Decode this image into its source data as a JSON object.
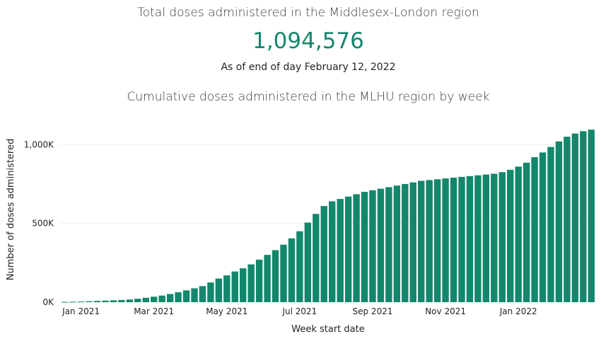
{
  "kpi": {
    "title": "Total doses administered in the Middlesex-London region",
    "value": "1,094,576",
    "as_of": "As of end of day February 12, 2022"
  },
  "colors": {
    "bar": "#13876b",
    "accent": "#14866d",
    "grid": "#c8c8c8"
  },
  "chart_data": {
    "type": "bar",
    "title": "Cumulative doses administered in the MLHU region by week",
    "xlabel": "Week start date",
    "ylabel": "Number of doses administered",
    "ylim": [
      0,
      1100000
    ],
    "yticks": [
      {
        "value": 0,
        "label": "0K"
      },
      {
        "value": 500000,
        "label": "500K"
      },
      {
        "value": 1000000,
        "label": "1,000K"
      }
    ],
    "xticks": [
      {
        "index": 2,
        "label": "Jan 2021"
      },
      {
        "index": 11,
        "label": "Mar 2021"
      },
      {
        "index": 20,
        "label": "May 2021"
      },
      {
        "index": 29,
        "label": "Jul 2021"
      },
      {
        "index": 38,
        "label": "Sep 2021"
      },
      {
        "index": 47,
        "label": "Nov 2021"
      },
      {
        "index": 56,
        "label": "Jan 2022"
      }
    ],
    "grid": true,
    "values": [
      2000,
      3000,
      4000,
      6000,
      8000,
      10000,
      12000,
      14000,
      17000,
      22000,
      28000,
      35000,
      42000,
      52000,
      63000,
      75000,
      88000,
      102000,
      125000,
      150000,
      170000,
      195000,
      215000,
      240000,
      270000,
      300000,
      330000,
      365000,
      405000,
      450000,
      505000,
      560000,
      610000,
      640000,
      655000,
      670000,
      685000,
      700000,
      710000,
      720000,
      730000,
      740000,
      750000,
      760000,
      770000,
      775000,
      780000,
      785000,
      790000,
      795000,
      800000,
      805000,
      810000,
      815000,
      825000,
      840000,
      860000,
      885000,
      920000,
      950000,
      985000,
      1020000,
      1050000,
      1070000,
      1085000,
      1094576
    ]
  }
}
